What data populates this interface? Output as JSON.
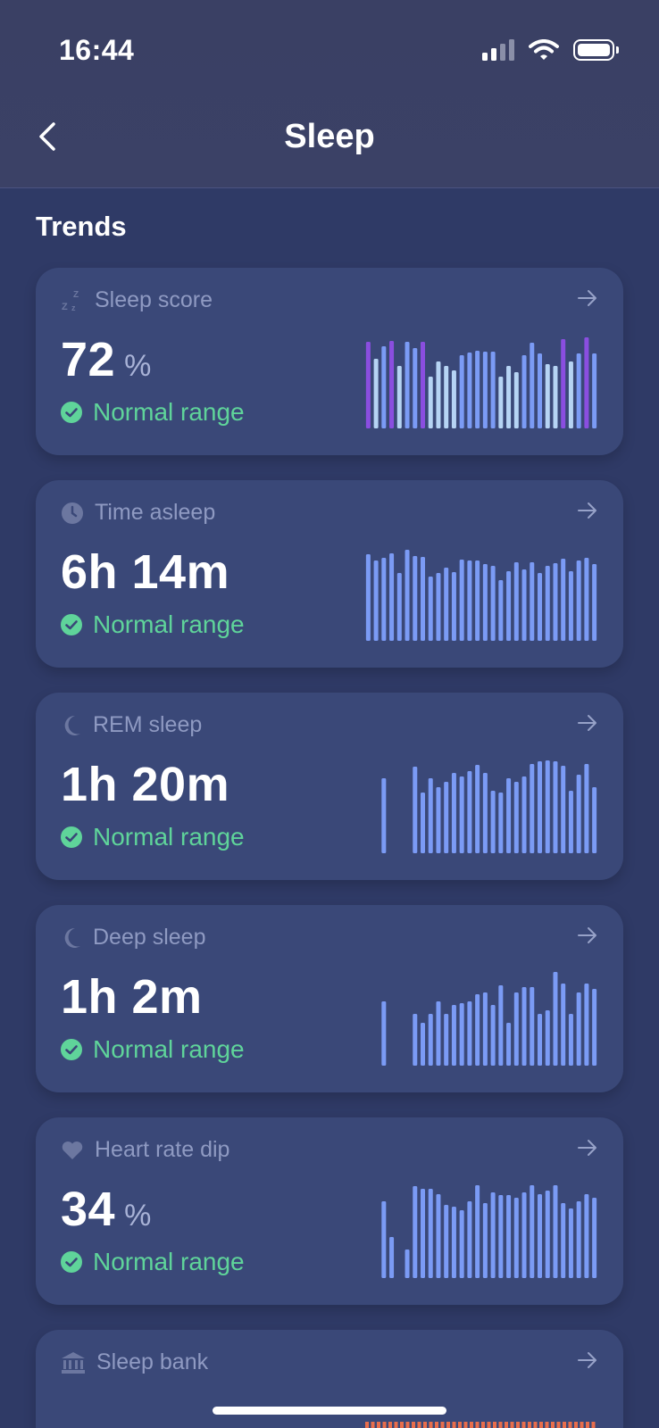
{
  "status_bar": {
    "time": "16:44"
  },
  "nav": {
    "title": "Sleep"
  },
  "section": {
    "title": "Trends"
  },
  "cards": [
    {
      "label": "Sleep score",
      "icon": "zzz-icon",
      "value": "72",
      "unit": "%",
      "status": "Normal range",
      "bars": [
        {
          "v": 0.97,
          "c": "purple"
        },
        {
          "v": 0.78,
          "c": "light"
        },
        {
          "v": 0.92,
          "c": "blue"
        },
        {
          "v": 0.98,
          "c": "purple"
        },
        {
          "v": 0.7,
          "c": "light"
        },
        {
          "v": 0.97,
          "c": "blue"
        },
        {
          "v": 0.9,
          "c": "blue"
        },
        {
          "v": 0.97,
          "c": "purple"
        },
        {
          "v": 0.58,
          "c": "light"
        },
        {
          "v": 0.75,
          "c": "light"
        },
        {
          "v": 0.7,
          "c": "light"
        },
        {
          "v": 0.65,
          "c": "light"
        },
        {
          "v": 0.82,
          "c": "blue"
        },
        {
          "v": 0.85,
          "c": "blue"
        },
        {
          "v": 0.87,
          "c": "blue"
        },
        {
          "v": 0.86,
          "c": "blue"
        },
        {
          "v": 0.86,
          "c": "blue"
        },
        {
          "v": 0.58,
          "c": "light"
        },
        {
          "v": 0.7,
          "c": "light"
        },
        {
          "v": 0.63,
          "c": "light"
        },
        {
          "v": 0.82,
          "c": "blue"
        },
        {
          "v": 0.96,
          "c": "blue"
        },
        {
          "v": 0.84,
          "c": "blue"
        },
        {
          "v": 0.72,
          "c": "light"
        },
        {
          "v": 0.7,
          "c": "light"
        },
        {
          "v": 1.0,
          "c": "purple"
        },
        {
          "v": 0.75,
          "c": "light"
        },
        {
          "v": 0.84,
          "c": "blue"
        },
        {
          "v": 1.02,
          "c": "purple"
        },
        {
          "v": 0.84,
          "c": "blue"
        }
      ]
    },
    {
      "label": "Time asleep",
      "icon": "clock-icon",
      "value": "6h 14m",
      "unit": "",
      "status": "Normal range",
      "bars": [
        {
          "v": 0.97,
          "c": "blue"
        },
        {
          "v": 0.9,
          "c": "blue"
        },
        {
          "v": 0.93,
          "c": "blue"
        },
        {
          "v": 0.98,
          "c": "blue"
        },
        {
          "v": 0.76,
          "c": "blue"
        },
        {
          "v": 1.02,
          "c": "blue"
        },
        {
          "v": 0.95,
          "c": "blue"
        },
        {
          "v": 0.94,
          "c": "blue"
        },
        {
          "v": 0.72,
          "c": "blue"
        },
        {
          "v": 0.76,
          "c": "blue"
        },
        {
          "v": 0.82,
          "c": "blue"
        },
        {
          "v": 0.77,
          "c": "blue"
        },
        {
          "v": 0.91,
          "c": "blue"
        },
        {
          "v": 0.9,
          "c": "blue"
        },
        {
          "v": 0.9,
          "c": "blue"
        },
        {
          "v": 0.86,
          "c": "blue"
        },
        {
          "v": 0.84,
          "c": "blue"
        },
        {
          "v": 0.68,
          "c": "blue"
        },
        {
          "v": 0.78,
          "c": "blue"
        },
        {
          "v": 0.88,
          "c": "blue"
        },
        {
          "v": 0.8,
          "c": "blue"
        },
        {
          "v": 0.88,
          "c": "blue"
        },
        {
          "v": 0.76,
          "c": "blue"
        },
        {
          "v": 0.84,
          "c": "blue"
        },
        {
          "v": 0.87,
          "c": "blue"
        },
        {
          "v": 0.92,
          "c": "blue"
        },
        {
          "v": 0.78,
          "c": "blue"
        },
        {
          "v": 0.9,
          "c": "blue"
        },
        {
          "v": 0.93,
          "c": "blue"
        },
        {
          "v": 0.86,
          "c": "blue"
        }
      ]
    },
    {
      "label": "REM sleep",
      "icon": "moon-icon",
      "value": "1h 20m",
      "unit": "",
      "status": "Normal range",
      "bars": [
        {
          "v": 0,
          "c": "blue"
        },
        {
          "v": 0,
          "c": "blue"
        },
        {
          "v": 0.84,
          "c": "blue"
        },
        {
          "v": 0,
          "c": "blue"
        },
        {
          "v": 0,
          "c": "blue"
        },
        {
          "v": 0,
          "c": "blue"
        },
        {
          "v": 0.97,
          "c": "blue"
        },
        {
          "v": 0.68,
          "c": "blue"
        },
        {
          "v": 0.84,
          "c": "blue"
        },
        {
          "v": 0.74,
          "c": "blue"
        },
        {
          "v": 0.8,
          "c": "blue"
        },
        {
          "v": 0.9,
          "c": "blue"
        },
        {
          "v": 0.86,
          "c": "blue"
        },
        {
          "v": 0.92,
          "c": "blue"
        },
        {
          "v": 0.99,
          "c": "blue"
        },
        {
          "v": 0.9,
          "c": "blue"
        },
        {
          "v": 0.7,
          "c": "blue"
        },
        {
          "v": 0.68,
          "c": "blue"
        },
        {
          "v": 0.84,
          "c": "blue"
        },
        {
          "v": 0.8,
          "c": "blue"
        },
        {
          "v": 0.86,
          "c": "blue"
        },
        {
          "v": 1.0,
          "c": "blue"
        },
        {
          "v": 1.03,
          "c": "blue"
        },
        {
          "v": 1.04,
          "c": "blue"
        },
        {
          "v": 1.03,
          "c": "blue"
        },
        {
          "v": 0.98,
          "c": "blue"
        },
        {
          "v": 0.7,
          "c": "blue"
        },
        {
          "v": 0.88,
          "c": "blue"
        },
        {
          "v": 1.0,
          "c": "blue"
        },
        {
          "v": 0.74,
          "c": "blue"
        }
      ]
    },
    {
      "label": "Deep sleep",
      "icon": "moon-icon",
      "value": "1h 2m",
      "unit": "",
      "status": "Normal range",
      "bars": [
        {
          "v": 0,
          "c": "blue"
        },
        {
          "v": 0,
          "c": "blue"
        },
        {
          "v": 0.72,
          "c": "blue"
        },
        {
          "v": 0,
          "c": "blue"
        },
        {
          "v": 0,
          "c": "blue"
        },
        {
          "v": 0,
          "c": "blue"
        },
        {
          "v": 0.58,
          "c": "blue"
        },
        {
          "v": 0.48,
          "c": "blue"
        },
        {
          "v": 0.58,
          "c": "blue"
        },
        {
          "v": 0.72,
          "c": "blue"
        },
        {
          "v": 0.58,
          "c": "blue"
        },
        {
          "v": 0.68,
          "c": "blue"
        },
        {
          "v": 0.7,
          "c": "blue"
        },
        {
          "v": 0.72,
          "c": "blue"
        },
        {
          "v": 0.8,
          "c": "blue"
        },
        {
          "v": 0.82,
          "c": "blue"
        },
        {
          "v": 0.68,
          "c": "blue"
        },
        {
          "v": 0.9,
          "c": "blue"
        },
        {
          "v": 0.48,
          "c": "blue"
        },
        {
          "v": 0.82,
          "c": "blue"
        },
        {
          "v": 0.88,
          "c": "blue"
        },
        {
          "v": 0.88,
          "c": "blue"
        },
        {
          "v": 0.58,
          "c": "blue"
        },
        {
          "v": 0.62,
          "c": "blue"
        },
        {
          "v": 1.05,
          "c": "blue"
        },
        {
          "v": 0.92,
          "c": "blue"
        },
        {
          "v": 0.58,
          "c": "blue"
        },
        {
          "v": 0.82,
          "c": "blue"
        },
        {
          "v": 0.92,
          "c": "blue"
        },
        {
          "v": 0.86,
          "c": "blue"
        }
      ]
    },
    {
      "label": "Heart rate dip",
      "icon": "heart-icon",
      "value": "34",
      "unit": "%",
      "status": "Normal range",
      "bars": [
        {
          "v": 0,
          "c": "blue"
        },
        {
          "v": 0,
          "c": "blue"
        },
        {
          "v": 0.86,
          "c": "blue"
        },
        {
          "v": 0.46,
          "c": "blue"
        },
        {
          "v": 0,
          "c": "blue"
        },
        {
          "v": 0.32,
          "c": "blue"
        },
        {
          "v": 1.03,
          "c": "blue"
        },
        {
          "v": 1.0,
          "c": "blue"
        },
        {
          "v": 1.0,
          "c": "blue"
        },
        {
          "v": 0.94,
          "c": "blue"
        },
        {
          "v": 0.82,
          "c": "blue"
        },
        {
          "v": 0.8,
          "c": "blue"
        },
        {
          "v": 0.76,
          "c": "blue"
        },
        {
          "v": 0.86,
          "c": "blue"
        },
        {
          "v": 1.04,
          "c": "blue"
        },
        {
          "v": 0.84,
          "c": "blue"
        },
        {
          "v": 0.96,
          "c": "blue"
        },
        {
          "v": 0.93,
          "c": "blue"
        },
        {
          "v": 0.93,
          "c": "blue"
        },
        {
          "v": 0.9,
          "c": "blue"
        },
        {
          "v": 0.96,
          "c": "blue"
        },
        {
          "v": 1.04,
          "c": "blue"
        },
        {
          "v": 0.94,
          "c": "blue"
        },
        {
          "v": 0.98,
          "c": "blue"
        },
        {
          "v": 1.04,
          "c": "blue"
        },
        {
          "v": 0.84,
          "c": "blue"
        },
        {
          "v": 0.78,
          "c": "blue"
        },
        {
          "v": 0.86,
          "c": "blue"
        },
        {
          "v": 0.94,
          "c": "blue"
        },
        {
          "v": 0.9,
          "c": "blue"
        }
      ]
    },
    {
      "label": "Sleep bank",
      "icon": "bank-icon"
    }
  ],
  "colors": {
    "background": "#2f3a66",
    "card": "#3a4878",
    "label": "#8f9ac2",
    "status_green": "#5fd49a",
    "bar_blue": "#7b9bf5",
    "bar_light": "#b6d4f4",
    "bar_purple": "#8a4ee0",
    "bar_orange": "#e86e4c"
  }
}
